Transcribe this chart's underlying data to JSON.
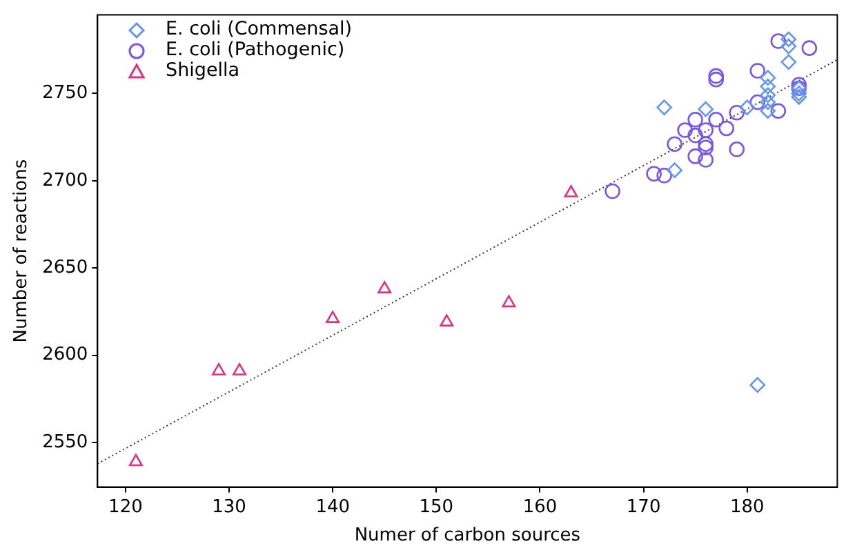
{
  "chart_data": {
    "type": "scatter",
    "xlabel": "Numer of carbon sources",
    "ylabel": "Number of reactions",
    "xlim": [
      117.3,
      188.7
    ],
    "ylim": [
      2524.5,
      2795
    ],
    "xticks": [
      120,
      130,
      140,
      150,
      160,
      170,
      180
    ],
    "yticks": [
      2550,
      2600,
      2650,
      2700,
      2750
    ],
    "grid": false,
    "legend": "top left",
    "series": [
      {
        "name": "E. coli (Commensal)",
        "color": "#6495ed",
        "marker": "diamond",
        "x": [
          172,
          173,
          176,
          180,
          182,
          182,
          182,
          182,
          182,
          184,
          184,
          184,
          185,
          185,
          185,
          181
        ],
        "values": [
          2742,
          2706,
          2741,
          2742,
          2759,
          2754,
          2749,
          2740,
          2745,
          2781,
          2777,
          2768,
          2750,
          2748,
          2753,
          2583
        ]
      },
      {
        "name": "E. coli (Pathogenic)",
        "color": "#7856e8",
        "marker": "circle",
        "x": [
          167,
          171,
          172,
          173,
          174,
          175,
          175,
          175,
          176,
          176,
          176,
          176,
          177,
          177,
          177,
          178,
          179,
          179,
          181,
          181,
          183,
          183,
          185,
          185,
          186
        ],
        "values": [
          2694,
          2704,
          2703,
          2721,
          2729,
          2735,
          2726,
          2714,
          2729,
          2721,
          2719,
          2712,
          2735,
          2760,
          2758,
          2730,
          2739,
          2718,
          2763,
          2745,
          2780,
          2740,
          2755,
          2753,
          2776
        ]
      },
      {
        "name": "Shigella",
        "color": "#e0307f",
        "marker": "triangle",
        "x": [
          121,
          129,
          131,
          140,
          145,
          151,
          157,
          163
        ],
        "values": [
          2539,
          2591,
          2591,
          2621,
          2638,
          2619,
          2630,
          2693
        ]
      },
      {
        "type": "line",
        "color": "#333333",
        "marker": "none",
        "line_style": "dotted",
        "x": [
          117.3,
          188.7
        ],
        "values": [
          2537.9,
          2769.3
        ]
      }
    ]
  }
}
